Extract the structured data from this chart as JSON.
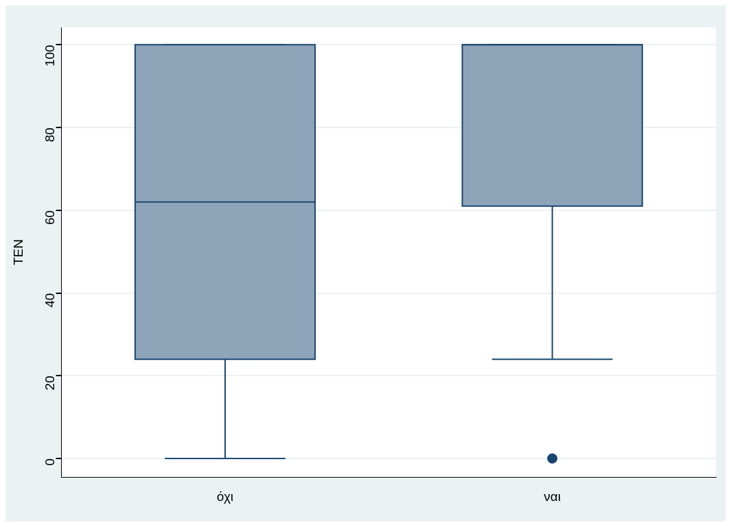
{
  "chart_data": {
    "type": "box",
    "ylabel": "TEN",
    "categories": [
      "όχι",
      "ναι"
    ],
    "series": [
      {
        "color": "#8ea4b8",
        "boxes": [
          {
            "low": 0,
            "q1": 24,
            "median": 62,
            "q3": 100,
            "high": 100
          },
          {
            "low": 24,
            "q1": 61,
            "median": 100,
            "q3": 100,
            "high": 100,
            "outliers": [
              0
            ]
          }
        ]
      }
    ],
    "ylim": [
      -4.5,
      104.2
    ],
    "yticks": [
      0,
      20,
      40,
      60,
      80,
      100
    ],
    "grid": "y"
  }
}
